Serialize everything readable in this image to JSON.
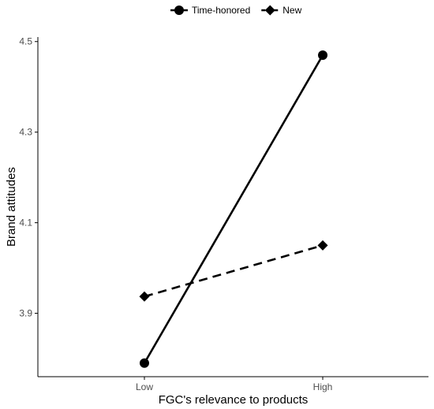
{
  "chart_data": {
    "type": "line",
    "categories": [
      "Low",
      "High"
    ],
    "series": [
      {
        "name": "Time-honored",
        "values": [
          3.79,
          4.47
        ],
        "marker": "circle",
        "line_style": "solid",
        "color": "#000000"
      },
      {
        "name": "New",
        "values": [
          3.937,
          4.05
        ],
        "marker": "diamond",
        "line_style": "dashed",
        "color": "#000000"
      }
    ],
    "xlabel": "FGC's relevance to products",
    "ylabel": "Brand attitudes",
    "ylim": [
      3.76,
      4.51
    ],
    "yticks": [
      "3.9",
      "4.1",
      "4.3",
      "4.5"
    ],
    "grid": false,
    "legend_position": "top"
  }
}
